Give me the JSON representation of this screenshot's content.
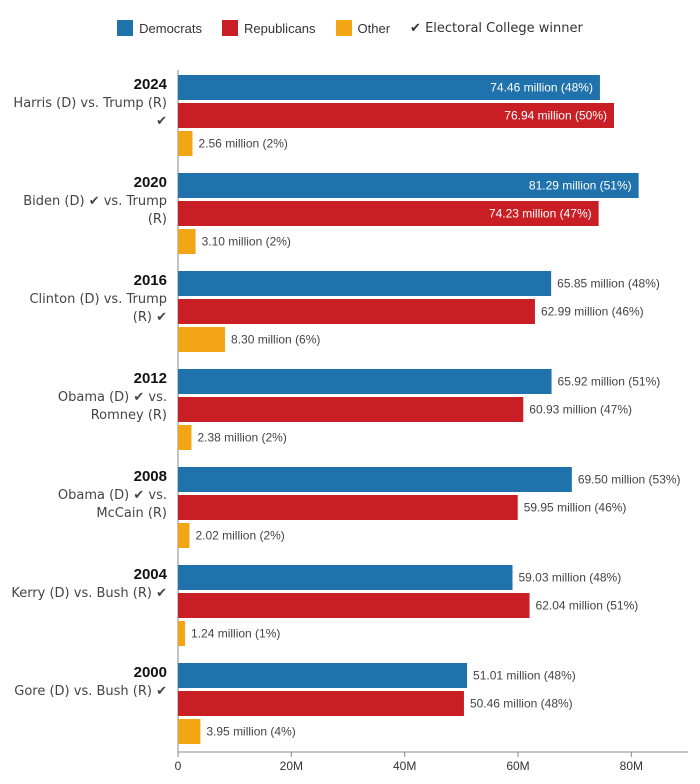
{
  "chart_data": {
    "type": "bar",
    "orientation": "horizontal",
    "categories": [
      "2024",
      "2020",
      "2016",
      "2012",
      "2008",
      "2004",
      "2000"
    ],
    "subtitles": [
      "Harris (D) vs. Trump (R) ✔",
      "Biden (D) ✔ vs. Trump (R)",
      "Clinton (D) vs. Trump (R) ✔",
      "Obama (D) ✔ vs. Romney (R)",
      "Obama (D) ✔ vs. McCain (R)",
      "Kerry (D) vs. Bush (R) ✔",
      "Gore (D) vs. Bush (R) ✔"
    ],
    "legend_note": "✔ Electoral College winner",
    "series": [
      {
        "name": "Democrats",
        "color": "#1f72ab",
        "values": [
          74.46,
          81.29,
          65.85,
          65.92,
          69.5,
          59.03,
          51.01
        ],
        "value_labels": [
          "74.46 million (48%)",
          "81.29 million (51%)",
          "65.85 million (48%)",
          "65.92 million (51%)",
          "69.50 million (53%)",
          "59.03 million (48%)",
          "51.01 million (48%)"
        ]
      },
      {
        "name": "Republicans",
        "color": "#c81e24",
        "values": [
          76.94,
          74.23,
          62.99,
          60.93,
          59.95,
          62.04,
          50.46
        ],
        "value_labels": [
          "76.94 million (50%)",
          "74.23 million (47%)",
          "62.99 million (46%)",
          "60.93 million (47%)",
          "59.95 million (46%)",
          "62.04 million (51%)",
          "50.46 million (48%)"
        ]
      },
      {
        "name": "Other",
        "color": "#f2a515",
        "values": [
          2.56,
          3.1,
          8.3,
          2.38,
          2.02,
          1.24,
          3.95
        ],
        "value_labels": [
          "2.56 million (2%)",
          "3.10 million (2%)",
          "8.30 million (6%)",
          "2.38 million (2%)",
          "2.02 million (2%)",
          "1.24 million (1%)",
          "3.95 million (4%)"
        ]
      }
    ],
    "xlim": [
      0,
      90
    ],
    "xticks": [
      0,
      {
        "value": 20,
        "label": "20M"
      },
      {
        "value": 40,
        "label": "40M"
      },
      {
        "value": 60,
        "label": "60M"
      },
      {
        "value": 80,
        "label": "80M"
      }
    ]
  }
}
